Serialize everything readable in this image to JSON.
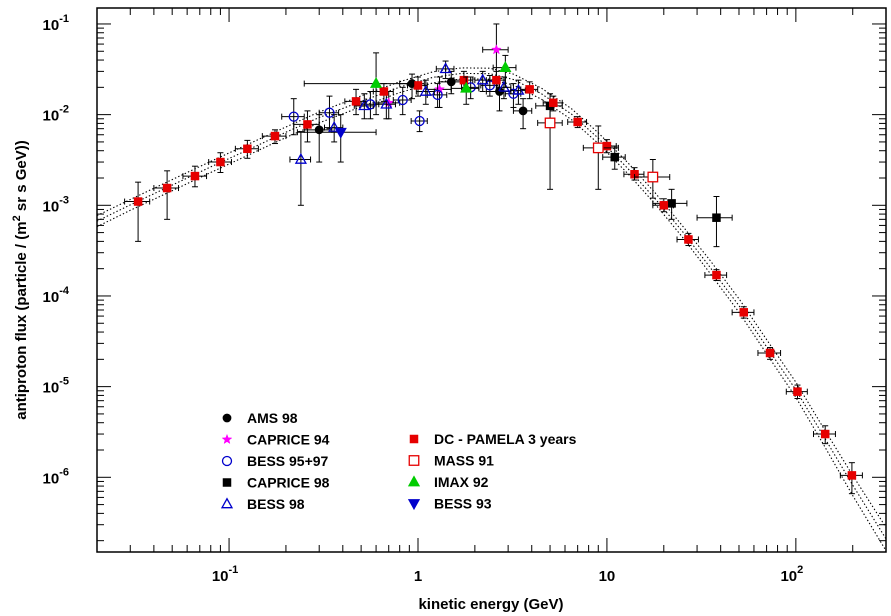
{
  "chart_data": {
    "type": "scatter",
    "title": "",
    "xlabel": "kinetic energy (GeV)",
    "ylabel_parts": [
      "antiproton flux (particle / (m",
      "2",
      " sr s GeV))"
    ],
    "x_scale": "log",
    "y_scale": "log",
    "xlim": [
      0.02,
      300
    ],
    "ylim": [
      1.5e-07,
      0.15
    ],
    "x_ticks": [
      {
        "value": 0.1,
        "base": "10",
        "exp": "-1"
      },
      {
        "value": 1,
        "base": "1",
        "exp": ""
      },
      {
        "value": 10,
        "base": "10",
        "exp": ""
      },
      {
        "value": 100,
        "base": "10",
        "exp": "2"
      }
    ],
    "y_ticks": [
      {
        "value": 1e-06,
        "base": "10",
        "exp": "-6"
      },
      {
        "value": 1e-05,
        "base": "10",
        "exp": "-5"
      },
      {
        "value": 0.0001,
        "base": "10",
        "exp": "-4"
      },
      {
        "value": 0.001,
        "base": "10",
        "exp": "-3"
      },
      {
        "value": 0.01,
        "base": "10",
        "exp": "-2"
      },
      {
        "value": 0.1,
        "base": "10",
        "exp": "-1"
      }
    ],
    "grid": false,
    "legend_position": "bottom-left",
    "series": [
      {
        "name": "AMS 98",
        "marker": "circle",
        "fill": true,
        "color": "#000000",
        "points": [
          {
            "x": 0.3,
            "y": 0.0068,
            "xlo": 0.25,
            "xhi": 0.35,
            "ylo": 0.003,
            "yhi": 0.01
          },
          {
            "x": 0.93,
            "y": 0.022,
            "xlo": 0.8,
            "xhi": 1.08,
            "ylo": 0.015,
            "yhi": 0.028
          },
          {
            "x": 1.5,
            "y": 0.023,
            "xlo": 1.3,
            "xhi": 1.7,
            "ylo": 0.017,
            "yhi": 0.03
          },
          {
            "x": 2.7,
            "y": 0.018,
            "xlo": 2.3,
            "xhi": 3.1,
            "ylo": 0.011,
            "yhi": 0.025
          },
          {
            "x": 3.6,
            "y": 0.011,
            "xlo": 3.2,
            "xhi": 4.0,
            "ylo": 0.007,
            "yhi": 0.015
          }
        ]
      },
      {
        "name": "CAPRICE 94",
        "marker": "star",
        "fill": true,
        "color": "#ff00ff",
        "points": [
          {
            "x": 0.7,
            "y": 0.0135,
            "xlo": 0.6,
            "xhi": 0.8,
            "ylo": 0.009,
            "yhi": 0.018
          },
          {
            "x": 1.3,
            "y": 0.019,
            "xlo": 1.1,
            "xhi": 1.5,
            "ylo": 0.012,
            "yhi": 0.026
          },
          {
            "x": 2.6,
            "y": 0.052,
            "xlo": 2.2,
            "xhi": 3.0,
            "ylo": 0.025,
            "yhi": 0.1
          }
        ]
      },
      {
        "name": "BESS 95+97",
        "marker": "circle",
        "fill": false,
        "color": "#0000cc",
        "points": [
          {
            "x": 0.22,
            "y": 0.0095,
            "xlo": 0.19,
            "xhi": 0.25,
            "ylo": 0.006,
            "yhi": 0.015
          },
          {
            "x": 0.34,
            "y": 0.0105,
            "xlo": 0.3,
            "xhi": 0.38,
            "ylo": 0.007,
            "yhi": 0.016
          },
          {
            "x": 0.56,
            "y": 0.013,
            "xlo": 0.5,
            "xhi": 0.62,
            "ylo": 0.009,
            "yhi": 0.018
          },
          {
            "x": 0.83,
            "y": 0.0145,
            "xlo": 0.74,
            "xhi": 0.92,
            "ylo": 0.01,
            "yhi": 0.02
          },
          {
            "x": 1.02,
            "y": 0.0085,
            "xlo": 0.92,
            "xhi": 1.12,
            "ylo": 0.0065,
            "yhi": 0.011
          },
          {
            "x": 1.27,
            "y": 0.0165,
            "xlo": 1.12,
            "xhi": 1.42,
            "ylo": 0.012,
            "yhi": 0.022
          },
          {
            "x": 1.9,
            "y": 0.02,
            "xlo": 1.7,
            "xhi": 2.1,
            "ylo": 0.015,
            "yhi": 0.026
          },
          {
            "x": 2.4,
            "y": 0.021,
            "xlo": 2.15,
            "xhi": 2.65,
            "ylo": 0.016,
            "yhi": 0.027
          },
          {
            "x": 3.2,
            "y": 0.017,
            "xlo": 2.9,
            "xhi": 3.5,
            "ylo": 0.012,
            "yhi": 0.022
          }
        ]
      },
      {
        "name": "CAPRICE 98",
        "marker": "square",
        "fill": true,
        "color": "#000000",
        "points": [
          {
            "x": 5.0,
            "y": 0.0125,
            "xlo": 4.2,
            "xhi": 5.8,
            "ylo": 0.009,
            "yhi": 0.017
          },
          {
            "x": 11.0,
            "y": 0.0034,
            "xlo": 9.5,
            "xhi": 12.5,
            "ylo": 0.0025,
            "yhi": 0.0045
          },
          {
            "x": 22.0,
            "y": 0.00105,
            "xlo": 17.5,
            "xhi": 26.5,
            "ylo": 0.0007,
            "yhi": 0.0015
          },
          {
            "x": 38.0,
            "y": 0.00073,
            "xlo": 30.0,
            "xhi": 46.0,
            "ylo": 0.00035,
            "yhi": 0.00125
          }
        ]
      },
      {
        "name": "BESS 98",
        "marker": "triangle-up",
        "fill": false,
        "color": "#0000cc",
        "points": [
          {
            "x": 0.24,
            "y": 0.0032,
            "xlo": 0.21,
            "xhi": 0.27,
            "ylo": 0.001,
            "yhi": 0.0065
          },
          {
            "x": 0.36,
            "y": 0.0072,
            "xlo": 0.32,
            "xhi": 0.4,
            "ylo": 0.005,
            "yhi": 0.01
          },
          {
            "x": 0.52,
            "y": 0.0125,
            "xlo": 0.46,
            "xhi": 0.58,
            "ylo": 0.009,
            "yhi": 0.017
          },
          {
            "x": 0.68,
            "y": 0.013,
            "xlo": 0.6,
            "xhi": 0.76,
            "ylo": 0.009,
            "yhi": 0.018
          },
          {
            "x": 1.1,
            "y": 0.018,
            "xlo": 0.98,
            "xhi": 1.22,
            "ylo": 0.013,
            "yhi": 0.024
          },
          {
            "x": 1.4,
            "y": 0.032,
            "xlo": 1.25,
            "xhi": 1.55,
            "ylo": 0.025,
            "yhi": 0.039
          },
          {
            "x": 2.2,
            "y": 0.024,
            "xlo": 2.0,
            "xhi": 2.4,
            "ylo": 0.018,
            "yhi": 0.03
          },
          {
            "x": 2.85,
            "y": 0.02,
            "xlo": 2.6,
            "xhi": 3.1,
            "ylo": 0.015,
            "yhi": 0.026
          },
          {
            "x": 3.4,
            "y": 0.0185,
            "xlo": 3.1,
            "xhi": 3.7,
            "ylo": 0.013,
            "yhi": 0.024
          }
        ]
      },
      {
        "name": "DC - PAMELA 3 years",
        "marker": "square",
        "fill": true,
        "color": "#e60000",
        "points": [
          {
            "x": 0.033,
            "y": 0.0011,
            "xlo": 0.028,
            "xhi": 0.038,
            "ylo": 0.0004,
            "yhi": 0.0018
          },
          {
            "x": 0.047,
            "y": 0.00155,
            "xlo": 0.04,
            "xhi": 0.054,
            "ylo": 0.0007,
            "yhi": 0.0024
          },
          {
            "x": 0.066,
            "y": 0.0021,
            "xlo": 0.057,
            "xhi": 0.076,
            "ylo": 0.0016,
            "yhi": 0.0027
          },
          {
            "x": 0.09,
            "y": 0.003,
            "xlo": 0.078,
            "xhi": 0.103,
            "ylo": 0.0023,
            "yhi": 0.0038
          },
          {
            "x": 0.125,
            "y": 0.0042,
            "xlo": 0.108,
            "xhi": 0.143,
            "ylo": 0.0033,
            "yhi": 0.0052
          },
          {
            "x": 0.175,
            "y": 0.0058,
            "xlo": 0.15,
            "xhi": 0.2,
            "ylo": 0.0048,
            "yhi": 0.0068
          },
          {
            "x": 0.26,
            "y": 0.0078,
            "xlo": 0.22,
            "xhi": 0.3,
            "ylo": 0.005,
            "yhi": 0.011
          },
          {
            "x": 0.47,
            "y": 0.014,
            "xlo": 0.41,
            "xhi": 0.53,
            "ylo": 0.01,
            "yhi": 0.019
          },
          {
            "x": 0.66,
            "y": 0.018,
            "xlo": 0.58,
            "xhi": 0.74,
            "ylo": 0.014,
            "yhi": 0.022
          },
          {
            "x": 1.0,
            "y": 0.021,
            "xlo": 0.88,
            "xhi": 1.12,
            "ylo": 0.016,
            "yhi": 0.026
          },
          {
            "x": 1.75,
            "y": 0.024,
            "xlo": 1.55,
            "xhi": 1.95,
            "ylo": 0.018,
            "yhi": 0.03
          },
          {
            "x": 2.6,
            "y": 0.024,
            "xlo": 2.3,
            "xhi": 2.9,
            "ylo": 0.018,
            "yhi": 0.03
          },
          {
            "x": 3.9,
            "y": 0.019,
            "xlo": 3.5,
            "xhi": 4.3,
            "ylo": 0.015,
            "yhi": 0.023
          },
          {
            "x": 5.2,
            "y": 0.0135,
            "xlo": 4.6,
            "xhi": 5.8,
            "ylo": 0.011,
            "yhi": 0.016
          },
          {
            "x": 7.0,
            "y": 0.0083,
            "xlo": 6.2,
            "xhi": 7.8,
            "ylo": 0.0072,
            "yhi": 0.0095
          },
          {
            "x": 10.0,
            "y": 0.0045,
            "xlo": 8.8,
            "xhi": 11.2,
            "ylo": 0.0038,
            "yhi": 0.0053
          },
          {
            "x": 14.0,
            "y": 0.0022,
            "xlo": 12.3,
            "xhi": 15.7,
            "ylo": 0.0019,
            "yhi": 0.0026
          },
          {
            "x": 20.0,
            "y": 0.001,
            "xlo": 17.5,
            "xhi": 22.5,
            "ylo": 0.00085,
            "yhi": 0.00118
          },
          {
            "x": 27.0,
            "y": 0.00042,
            "xlo": 23.5,
            "xhi": 30.5,
            "ylo": 0.00036,
            "yhi": 0.00049
          },
          {
            "x": 38.0,
            "y": 0.00017,
            "xlo": 33.0,
            "xhi": 43.0,
            "ylo": 0.000148,
            "yhi": 0.000195
          },
          {
            "x": 53.0,
            "y": 6.6e-05,
            "xlo": 46.0,
            "xhi": 60.0,
            "ylo": 5.7e-05,
            "yhi": 7.6e-05
          },
          {
            "x": 73.0,
            "y": 2.35e-05,
            "xlo": 63.0,
            "xhi": 83.0,
            "ylo": 2e-05,
            "yhi": 2.7e-05
          },
          {
            "x": 102.0,
            "y": 8.8e-06,
            "xlo": 89.0,
            "xhi": 115.0,
            "ylo": 7.4e-06,
            "yhi": 1.04e-05
          },
          {
            "x": 143.0,
            "y": 3e-06,
            "xlo": 124.0,
            "xhi": 162.0,
            "ylo": 2.35e-06,
            "yhi": 3.7e-06
          },
          {
            "x": 198.0,
            "y": 1.05e-06,
            "xlo": 172.0,
            "xhi": 225.0,
            "ylo": 6.6e-07,
            "yhi": 1.45e-06
          }
        ]
      },
      {
        "name": "MASS 91",
        "marker": "square",
        "fill": false,
        "color": "#e60000",
        "points": [
          {
            "x": 5.0,
            "y": 0.0081,
            "xlo": 4.3,
            "xhi": 5.8,
            "ylo": 0.0015,
            "yhi": 0.012
          },
          {
            "x": 9.0,
            "y": 0.0043,
            "xlo": 7.5,
            "xhi": 11.5,
            "ylo": 0.0015,
            "yhi": 0.0075
          },
          {
            "x": 17.5,
            "y": 0.00205,
            "xlo": 14.0,
            "xhi": 21.5,
            "ylo": 0.0012,
            "yhi": 0.0032
          }
        ]
      },
      {
        "name": "IMAX 92",
        "marker": "triangle-up",
        "fill": true,
        "color": "#00cc00",
        "points": [
          {
            "x": 0.6,
            "y": 0.022,
            "xlo": 0.25,
            "xhi": 0.95,
            "ylo": 0.01,
            "yhi": 0.048
          },
          {
            "x": 1.8,
            "y": 0.0195,
            "xlo": 1.5,
            "xhi": 2.1,
            "ylo": 0.013,
            "yhi": 0.026
          },
          {
            "x": 2.9,
            "y": 0.033,
            "xlo": 2.5,
            "xhi": 3.3,
            "ylo": 0.02,
            "yhi": 0.045
          }
        ]
      },
      {
        "name": "BESS 93",
        "marker": "triangle-down",
        "fill": true,
        "color": "#0000cc",
        "points": [
          {
            "x": 0.39,
            "y": 0.0064,
            "xlo": 0.23,
            "xhi": 0.6,
            "ylo": 0.003,
            "yhi": 0.01
          }
        ]
      }
    ],
    "model_curves": [
      {
        "x": [
          0.02,
          0.03,
          0.05,
          0.08,
          0.12,
          0.2,
          0.3,
          0.5,
          0.8,
          1.2,
          1.7,
          2.4,
          3.2,
          4.5,
          6.5,
          9,
          13,
          18,
          25,
          35,
          50,
          70,
          100,
          140,
          200,
          300
        ],
        "y": [
          0.00058,
          0.00088,
          0.00145,
          0.0023,
          0.0034,
          0.0056,
          0.0081,
          0.0122,
          0.0175,
          0.0224,
          0.0248,
          0.0246,
          0.0212,
          0.0148,
          0.0088,
          0.0048,
          0.0022,
          0.00103,
          0.00045,
          0.00018,
          6.6e-05,
          2.3e-05,
          7.6e-06,
          2.3e-06,
          6.3e-07,
          1.55e-07
        ]
      },
      {
        "x": [
          0.02,
          0.03,
          0.05,
          0.08,
          0.12,
          0.2,
          0.3,
          0.5,
          0.8,
          1.2,
          1.7,
          2.4,
          3.2,
          4.5,
          6.5,
          9,
          13,
          18,
          25,
          35,
          50,
          70,
          100,
          140,
          200,
          300
        ],
        "y": [
          0.00067,
          0.00101,
          0.00167,
          0.00265,
          0.0039,
          0.0064,
          0.0093,
          0.014,
          0.0201,
          0.0258,
          0.0285,
          0.0283,
          0.0244,
          0.017,
          0.0101,
          0.0055,
          0.0025,
          0.00118,
          0.00052,
          0.00021,
          7.8e-05,
          2.75e-05,
          9.2e-06,
          2.85e-06,
          8.2e-07,
          2.1e-07
        ]
      },
      {
        "x": [
          0.02,
          0.03,
          0.05,
          0.08,
          0.12,
          0.2,
          0.3,
          0.5,
          0.8,
          1.2,
          1.7,
          2.4,
          3.2,
          4.5,
          6.5,
          9,
          13,
          18,
          25,
          35,
          50,
          70,
          100,
          140,
          200,
          300
        ],
        "y": [
          0.00077,
          0.00116,
          0.00192,
          0.00305,
          0.0045,
          0.0073,
          0.0107,
          0.0161,
          0.0231,
          0.0297,
          0.0328,
          0.0325,
          0.028,
          0.0196,
          0.0116,
          0.0063,
          0.0029,
          0.00137,
          0.0006,
          0.00025,
          9.3e-05,
          3.3e-05,
          1.12e-05,
          3.5e-06,
          1.05e-06,
          2.8e-07
        ]
      }
    ]
  }
}
